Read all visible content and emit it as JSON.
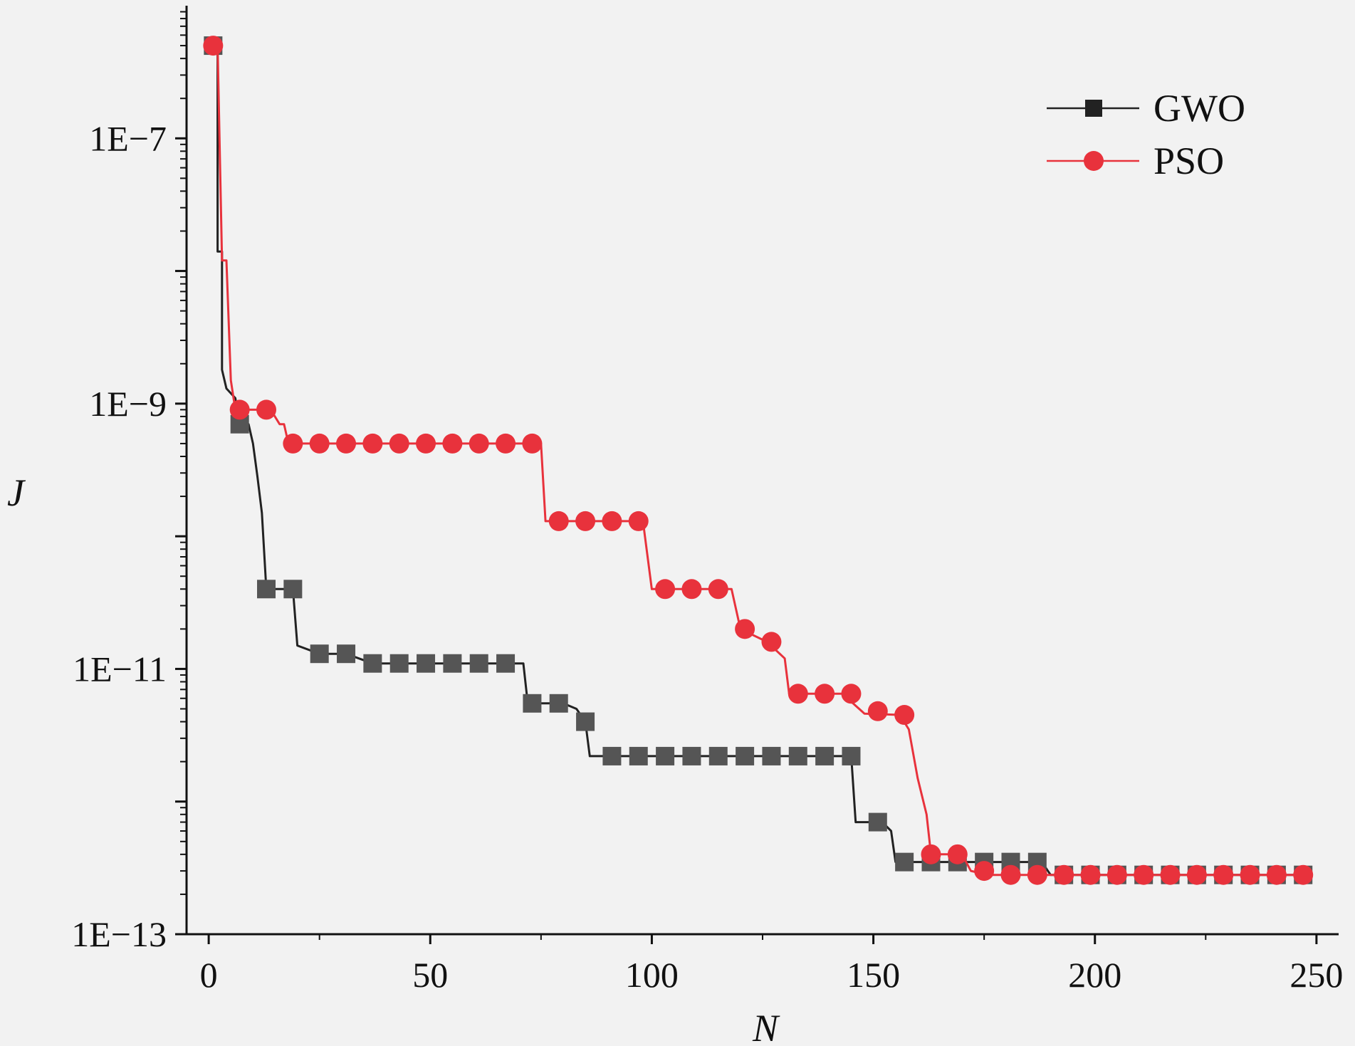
{
  "chart_data": {
    "type": "line",
    "title": "",
    "xlabel": "N",
    "ylabel": "J",
    "y_scale": "log",
    "xlim": [
      -5,
      255
    ],
    "ylim": [
      1e-13,
      1e-06
    ],
    "x_ticks": [
      0,
      50,
      100,
      150,
      200,
      250
    ],
    "x_tick_labels": [
      "0",
      "50",
      "100",
      "150",
      "200",
      "250"
    ],
    "y_ticks": [
      1e-13,
      1e-11,
      1e-09,
      1e-07
    ],
    "y_tick_labels": [
      "1E−13",
      "1E−11",
      "1E−9",
      "1E−7"
    ],
    "legend_position": "top-right",
    "series": [
      {
        "name": "GWO",
        "color": "#555555",
        "line_color": "#222222",
        "marker": "square",
        "line": [
          [
            1,
            5e-07
          ],
          [
            2,
            5e-07
          ],
          [
            2,
            1.4e-08
          ],
          [
            3,
            1.4e-08
          ],
          [
            3,
            1.8e-09
          ],
          [
            4,
            1.3e-09
          ],
          [
            6,
            1.1e-09
          ],
          [
            7,
            7e-10
          ],
          [
            9,
            7e-10
          ],
          [
            10,
            5e-10
          ],
          [
            11,
            2.8e-10
          ],
          [
            12,
            1.5e-10
          ],
          [
            13,
            4e-11
          ],
          [
            19,
            4e-11
          ],
          [
            20,
            1.5e-11
          ],
          [
            25,
            1.3e-11
          ],
          [
            31,
            1.3e-11
          ],
          [
            37,
            1.1e-11
          ],
          [
            71,
            1.1e-11
          ],
          [
            72,
            5.5e-12
          ],
          [
            80,
            5.5e-12
          ],
          [
            83,
            5e-12
          ],
          [
            85,
            4e-12
          ],
          [
            86,
            2.2e-12
          ],
          [
            145,
            2.2e-12
          ],
          [
            146,
            7e-13
          ],
          [
            152,
            7e-13
          ],
          [
            154,
            6e-13
          ],
          [
            155,
            3.5e-13
          ],
          [
            188,
            3.5e-13
          ],
          [
            190,
            2.8e-13
          ],
          [
            249,
            2.8e-13
          ]
        ],
        "markers": [
          [
            1,
            5e-07
          ],
          [
            7,
            7e-10
          ],
          [
            13,
            4e-11
          ],
          [
            19,
            4e-11
          ],
          [
            25,
            1.3e-11
          ],
          [
            31,
            1.3e-11
          ],
          [
            37,
            1.1e-11
          ],
          [
            43,
            1.1e-11
          ],
          [
            49,
            1.1e-11
          ],
          [
            55,
            1.1e-11
          ],
          [
            61,
            1.1e-11
          ],
          [
            67,
            1.1e-11
          ],
          [
            73,
            5.5e-12
          ],
          [
            79,
            5.5e-12
          ],
          [
            85,
            4e-12
          ],
          [
            91,
            2.2e-12
          ],
          [
            97,
            2.2e-12
          ],
          [
            103,
            2.2e-12
          ],
          [
            109,
            2.2e-12
          ],
          [
            115,
            2.2e-12
          ],
          [
            121,
            2.2e-12
          ],
          [
            127,
            2.2e-12
          ],
          [
            133,
            2.2e-12
          ],
          [
            139,
            2.2e-12
          ],
          [
            145,
            2.2e-12
          ],
          [
            151,
            7e-13
          ],
          [
            157,
            3.5e-13
          ],
          [
            163,
            3.5e-13
          ],
          [
            169,
            3.5e-13
          ],
          [
            175,
            3.5e-13
          ],
          [
            181,
            3.5e-13
          ],
          [
            187,
            3.5e-13
          ],
          [
            193,
            2.8e-13
          ],
          [
            199,
            2.8e-13
          ],
          [
            205,
            2.8e-13
          ],
          [
            211,
            2.8e-13
          ],
          [
            217,
            2.8e-13
          ],
          [
            223,
            2.8e-13
          ],
          [
            229,
            2.8e-13
          ],
          [
            235,
            2.8e-13
          ],
          [
            241,
            2.8e-13
          ],
          [
            247,
            2.8e-13
          ]
        ]
      },
      {
        "name": "PSO",
        "color": "#e8323c",
        "line_color": "#e8323c",
        "marker": "circle",
        "line": [
          [
            1,
            5e-07
          ],
          [
            2,
            5e-07
          ],
          [
            3,
            1.2e-08
          ],
          [
            4,
            1.2e-08
          ],
          [
            5,
            1.5e-09
          ],
          [
            6,
            9e-10
          ],
          [
            14,
            9e-10
          ],
          [
            16,
            7e-10
          ],
          [
            17,
            7e-10
          ],
          [
            18,
            5e-10
          ],
          [
            75,
            5e-10
          ],
          [
            76,
            1.3e-10
          ],
          [
            98,
            1.3e-10
          ],
          [
            100,
            4e-11
          ],
          [
            118,
            4e-11
          ],
          [
            120,
            2e-11
          ],
          [
            126,
            1.6e-11
          ],
          [
            130,
            1.2e-11
          ],
          [
            131,
            6.5e-12
          ],
          [
            143,
            6.5e-12
          ],
          [
            148,
            4.6e-12
          ],
          [
            156,
            4.5e-12
          ],
          [
            158,
            3.5e-12
          ],
          [
            160,
            1.5e-12
          ],
          [
            162,
            8e-13
          ],
          [
            163,
            4e-13
          ],
          [
            170,
            4e-13
          ],
          [
            172,
            3e-13
          ],
          [
            176,
            2.8e-13
          ],
          [
            249,
            2.8e-13
          ]
        ],
        "markers": [
          [
            1,
            5e-07
          ],
          [
            7,
            9e-10
          ],
          [
            13,
            9e-10
          ],
          [
            19,
            5e-10
          ],
          [
            25,
            5e-10
          ],
          [
            31,
            5e-10
          ],
          [
            37,
            5e-10
          ],
          [
            43,
            5e-10
          ],
          [
            49,
            5e-10
          ],
          [
            55,
            5e-10
          ],
          [
            61,
            5e-10
          ],
          [
            67,
            5e-10
          ],
          [
            73,
            5e-10
          ],
          [
            79,
            1.3e-10
          ],
          [
            85,
            1.3e-10
          ],
          [
            91,
            1.3e-10
          ],
          [
            97,
            1.3e-10
          ],
          [
            103,
            4e-11
          ],
          [
            109,
            4e-11
          ],
          [
            115,
            4e-11
          ],
          [
            121,
            2e-11
          ],
          [
            127,
            1.6e-11
          ],
          [
            133,
            6.5e-12
          ],
          [
            139,
            6.5e-12
          ],
          [
            145,
            6.5e-12
          ],
          [
            151,
            4.8e-12
          ],
          [
            157,
            4.5e-12
          ],
          [
            163,
            4e-13
          ],
          [
            169,
            4e-13
          ],
          [
            175,
            3e-13
          ],
          [
            181,
            2.8e-13
          ],
          [
            187,
            2.8e-13
          ],
          [
            193,
            2.8e-13
          ],
          [
            199,
            2.8e-13
          ],
          [
            205,
            2.8e-13
          ],
          [
            211,
            2.8e-13
          ],
          [
            217,
            2.8e-13
          ],
          [
            223,
            2.8e-13
          ],
          [
            229,
            2.8e-13
          ],
          [
            235,
            2.8e-13
          ],
          [
            241,
            2.8e-13
          ],
          [
            247,
            2.8e-13
          ]
        ]
      }
    ]
  }
}
